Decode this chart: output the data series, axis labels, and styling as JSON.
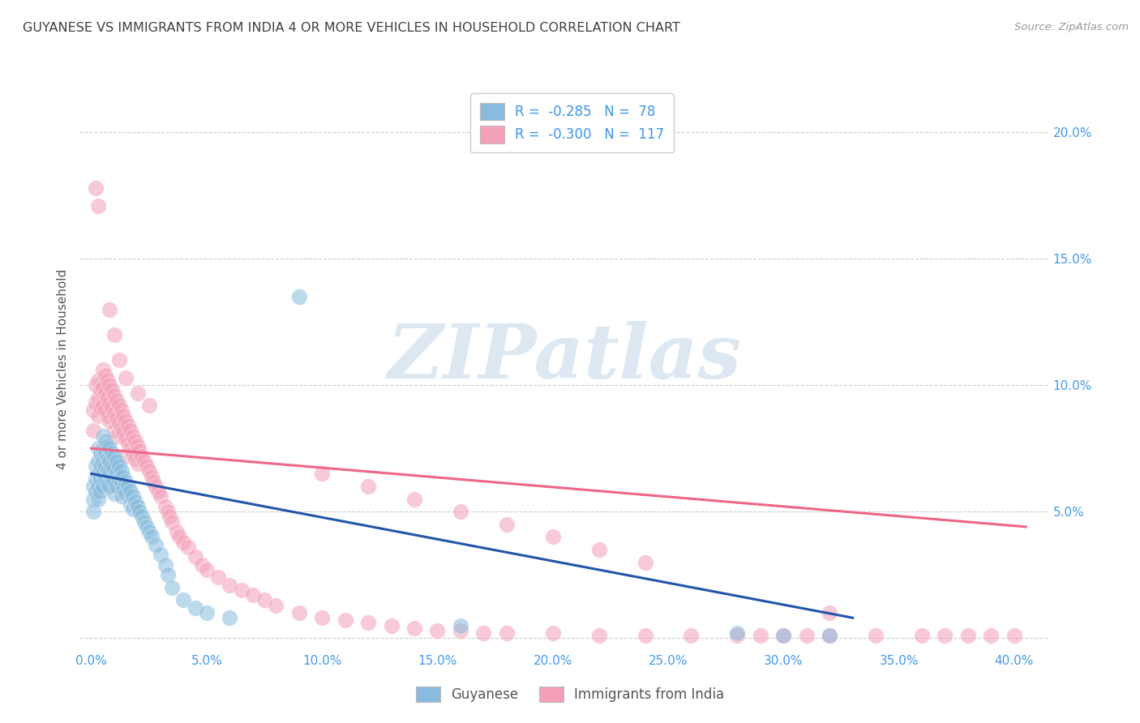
{
  "title": "GUYANESE VS IMMIGRANTS FROM INDIA 4 OR MORE VEHICLES IN HOUSEHOLD CORRELATION CHART",
  "source": "Source: ZipAtlas.com",
  "xlabel_vals": [
    0.0,
    0.05,
    0.1,
    0.15,
    0.2,
    0.25,
    0.3,
    0.35,
    0.4
  ],
  "xlabel_labels": [
    "0.0%",
    "5.0%",
    "10.0%",
    "15.0%",
    "20.0%",
    "25.0%",
    "30.0%",
    "35.0%",
    "40.0%"
  ],
  "ylabel_vals": [
    0.0,
    0.05,
    0.1,
    0.15,
    0.2
  ],
  "ylabel_labels_right": [
    "",
    "5.0%",
    "10.0%",
    "15.0%",
    "20.0%"
  ],
  "xlim": [
    -0.005,
    0.415
  ],
  "ylim": [
    -0.005,
    0.218
  ],
  "guyanese_R": "-0.285",
  "guyanese_N": "78",
  "india_R": "-0.300",
  "india_N": "117",
  "legend_label1": "Guyanese",
  "legend_label2": "Immigrants from India",
  "color_guyanese": "#88bbdd",
  "color_india": "#f4a0b8",
  "watermark": "ZIPatlas",
  "title_color": "#404040",
  "axis_color": "#4499ee",
  "trend_blue": "#2255aa",
  "trend_pink": "#ee6688",
  "guyanese_trend_x": [
    0.0,
    0.33
  ],
  "guyanese_trend_y": [
    0.065,
    0.008
  ],
  "india_trend_x": [
    0.0,
    0.405
  ],
  "india_trend_y": [
    0.075,
    0.044
  ],
  "guyanese_scatter_x": [
    0.001,
    0.001,
    0.001,
    0.002,
    0.002,
    0.002,
    0.003,
    0.003,
    0.003,
    0.003,
    0.003,
    0.004,
    0.004,
    0.004,
    0.004,
    0.005,
    0.005,
    0.005,
    0.005,
    0.005,
    0.006,
    0.006,
    0.006,
    0.006,
    0.007,
    0.007,
    0.007,
    0.007,
    0.008,
    0.008,
    0.008,
    0.008,
    0.009,
    0.009,
    0.009,
    0.01,
    0.01,
    0.01,
    0.01,
    0.011,
    0.011,
    0.011,
    0.012,
    0.012,
    0.013,
    0.013,
    0.013,
    0.014,
    0.014,
    0.015,
    0.015,
    0.016,
    0.017,
    0.017,
    0.018,
    0.018,
    0.019,
    0.02,
    0.021,
    0.022,
    0.023,
    0.024,
    0.025,
    0.026,
    0.028,
    0.03,
    0.032,
    0.033,
    0.035,
    0.04,
    0.045,
    0.05,
    0.06,
    0.09,
    0.16,
    0.28,
    0.3,
    0.32
  ],
  "guyanese_scatter_y": [
    0.06,
    0.055,
    0.05,
    0.068,
    0.063,
    0.058,
    0.075,
    0.07,
    0.065,
    0.06,
    0.055,
    0.073,
    0.068,
    0.063,
    0.058,
    0.08,
    0.075,
    0.07,
    0.065,
    0.06,
    0.078,
    0.073,
    0.068,
    0.063,
    0.076,
    0.071,
    0.066,
    0.061,
    0.075,
    0.07,
    0.065,
    0.06,
    0.073,
    0.068,
    0.063,
    0.072,
    0.067,
    0.062,
    0.057,
    0.07,
    0.065,
    0.06,
    0.068,
    0.063,
    0.066,
    0.061,
    0.056,
    0.064,
    0.059,
    0.062,
    0.057,
    0.06,
    0.058,
    0.053,
    0.056,
    0.051,
    0.054,
    0.052,
    0.05,
    0.048,
    0.046,
    0.044,
    0.042,
    0.04,
    0.037,
    0.033,
    0.029,
    0.025,
    0.02,
    0.015,
    0.012,
    0.01,
    0.008,
    0.135,
    0.005,
    0.002,
    0.001,
    0.001
  ],
  "india_scatter_x": [
    0.001,
    0.001,
    0.002,
    0.002,
    0.003,
    0.003,
    0.003,
    0.004,
    0.004,
    0.005,
    0.005,
    0.005,
    0.006,
    0.006,
    0.006,
    0.007,
    0.007,
    0.007,
    0.008,
    0.008,
    0.008,
    0.009,
    0.009,
    0.01,
    0.01,
    0.01,
    0.011,
    0.011,
    0.011,
    0.012,
    0.012,
    0.013,
    0.013,
    0.014,
    0.014,
    0.015,
    0.015,
    0.015,
    0.016,
    0.016,
    0.017,
    0.017,
    0.018,
    0.018,
    0.019,
    0.019,
    0.02,
    0.02,
    0.021,
    0.022,
    0.023,
    0.024,
    0.025,
    0.026,
    0.027,
    0.028,
    0.029,
    0.03,
    0.032,
    0.033,
    0.034,
    0.035,
    0.037,
    0.038,
    0.04,
    0.042,
    0.045,
    0.048,
    0.05,
    0.055,
    0.06,
    0.065,
    0.07,
    0.075,
    0.08,
    0.09,
    0.1,
    0.11,
    0.12,
    0.13,
    0.14,
    0.15,
    0.16,
    0.17,
    0.18,
    0.2,
    0.22,
    0.24,
    0.26,
    0.28,
    0.29,
    0.3,
    0.31,
    0.32,
    0.34,
    0.36,
    0.37,
    0.38,
    0.39,
    0.4,
    0.002,
    0.003,
    0.008,
    0.01,
    0.012,
    0.015,
    0.02,
    0.025,
    0.1,
    0.12,
    0.14,
    0.16,
    0.18,
    0.2,
    0.22,
    0.24,
    0.32
  ],
  "india_scatter_y": [
    0.09,
    0.082,
    0.1,
    0.093,
    0.102,
    0.095,
    0.088,
    0.098,
    0.091,
    0.106,
    0.099,
    0.092,
    0.104,
    0.097,
    0.09,
    0.102,
    0.095,
    0.088,
    0.1,
    0.093,
    0.086,
    0.098,
    0.091,
    0.096,
    0.089,
    0.082,
    0.094,
    0.087,
    0.08,
    0.092,
    0.085,
    0.09,
    0.083,
    0.088,
    0.081,
    0.086,
    0.079,
    0.072,
    0.084,
    0.077,
    0.082,
    0.075,
    0.08,
    0.073,
    0.078,
    0.071,
    0.076,
    0.069,
    0.074,
    0.072,
    0.07,
    0.068,
    0.066,
    0.064,
    0.062,
    0.06,
    0.058,
    0.056,
    0.052,
    0.05,
    0.048,
    0.046,
    0.042,
    0.04,
    0.038,
    0.036,
    0.032,
    0.029,
    0.027,
    0.024,
    0.021,
    0.019,
    0.017,
    0.015,
    0.013,
    0.01,
    0.008,
    0.007,
    0.006,
    0.005,
    0.004,
    0.003,
    0.003,
    0.002,
    0.002,
    0.002,
    0.001,
    0.001,
    0.001,
    0.001,
    0.001,
    0.001,
    0.001,
    0.001,
    0.001,
    0.001,
    0.001,
    0.001,
    0.001,
    0.001,
    0.178,
    0.171,
    0.13,
    0.12,
    0.11,
    0.103,
    0.097,
    0.092,
    0.065,
    0.06,
    0.055,
    0.05,
    0.045,
    0.04,
    0.035,
    0.03,
    0.01
  ]
}
